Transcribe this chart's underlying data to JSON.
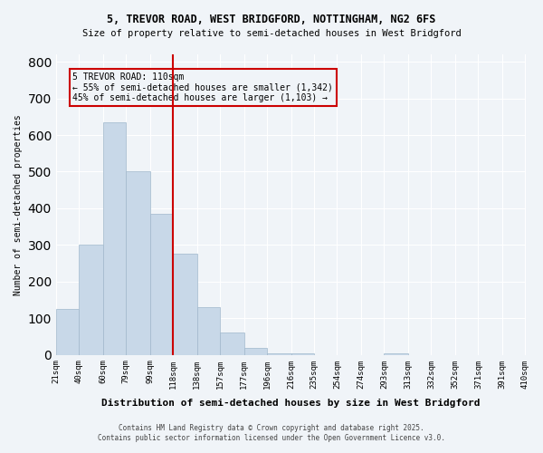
{
  "title1": "5, TREVOR ROAD, WEST BRIDGFORD, NOTTINGHAM, NG2 6FS",
  "title2": "Size of property relative to semi-detached houses in West Bridgford",
  "xlabel": "Distribution of semi-detached houses by size in West Bridgford",
  "ylabel": "Number of semi-detached properties",
  "bin_labels": [
    "21sqm",
    "40sqm",
    "60sqm",
    "79sqm",
    "99sqm",
    "118sqm",
    "138sqm",
    "157sqm",
    "177sqm",
    "196sqm",
    "216sqm",
    "235sqm",
    "254sqm",
    "274sqm",
    "293sqm",
    "313sqm",
    "332sqm",
    "352sqm",
    "371sqm",
    "391sqm",
    "410sqm"
  ],
  "bin_edges": [
    21,
    40,
    60,
    79,
    99,
    118,
    138,
    157,
    177,
    196,
    216,
    235,
    254,
    274,
    293,
    313,
    332,
    352,
    371,
    391,
    410
  ],
  "bar_heights": [
    125,
    300,
    635,
    500,
    385,
    275,
    130,
    60,
    20,
    5,
    5,
    0,
    0,
    0,
    5,
    0,
    0,
    0,
    0,
    0
  ],
  "bar_color": "#c8d8e8",
  "bar_edgecolor": "#a0b8cc",
  "property_sqm": 110,
  "vline_bin_index": 4,
  "annotation_title": "5 TREVOR ROAD: 110sqm",
  "annotation_line1": "← 55% of semi-detached houses are smaller (1,342)",
  "annotation_line2": "45% of semi-detached houses are larger (1,103) →",
  "vline_color": "#cc0000",
  "box_edgecolor": "#cc0000",
  "ylim": [
    0,
    820
  ],
  "yticks": [
    0,
    100,
    200,
    300,
    400,
    500,
    600,
    700,
    800
  ],
  "footnote1": "Contains HM Land Registry data © Crown copyright and database right 2025.",
  "footnote2": "Contains public sector information licensed under the Open Government Licence v3.0.",
  "bg_color": "#f0f4f8",
  "plot_bg_color": "#f0f4f8"
}
